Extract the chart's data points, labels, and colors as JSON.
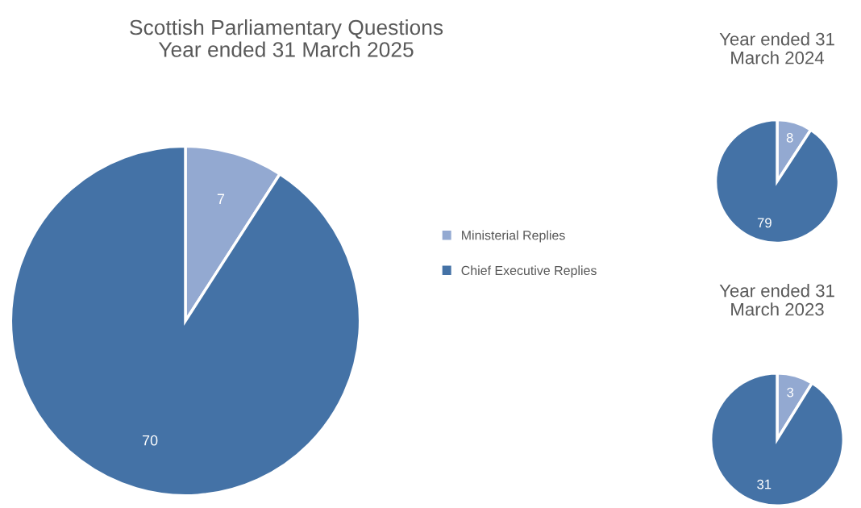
{
  "chart_data": [
    {
      "type": "pie",
      "title": "Scottish Parliamentary Questions\nYear ended 31 March 2025",
      "categories": [
        "Ministerial Replies",
        "Chief Executive Replies"
      ],
      "values": [
        7,
        70
      ],
      "colors": [
        "#93a9d1",
        "#4472a6"
      ],
      "data_labels": true,
      "legend": "right"
    },
    {
      "type": "pie",
      "title": "Year ended 31\nMarch 2024",
      "categories": [
        null,
        null
      ],
      "values": [
        8,
        79
      ],
      "colors": [
        "#93a9d1",
        "#4472a6"
      ],
      "data_labels": true
    },
    {
      "type": "pie",
      "title": "Year ended 31\nMarch 2023",
      "categories": [
        null,
        null
      ],
      "values": [
        3,
        31
      ],
      "colors": [
        "#93a9d1",
        "#4472a6"
      ],
      "data_labels": true
    }
  ]
}
